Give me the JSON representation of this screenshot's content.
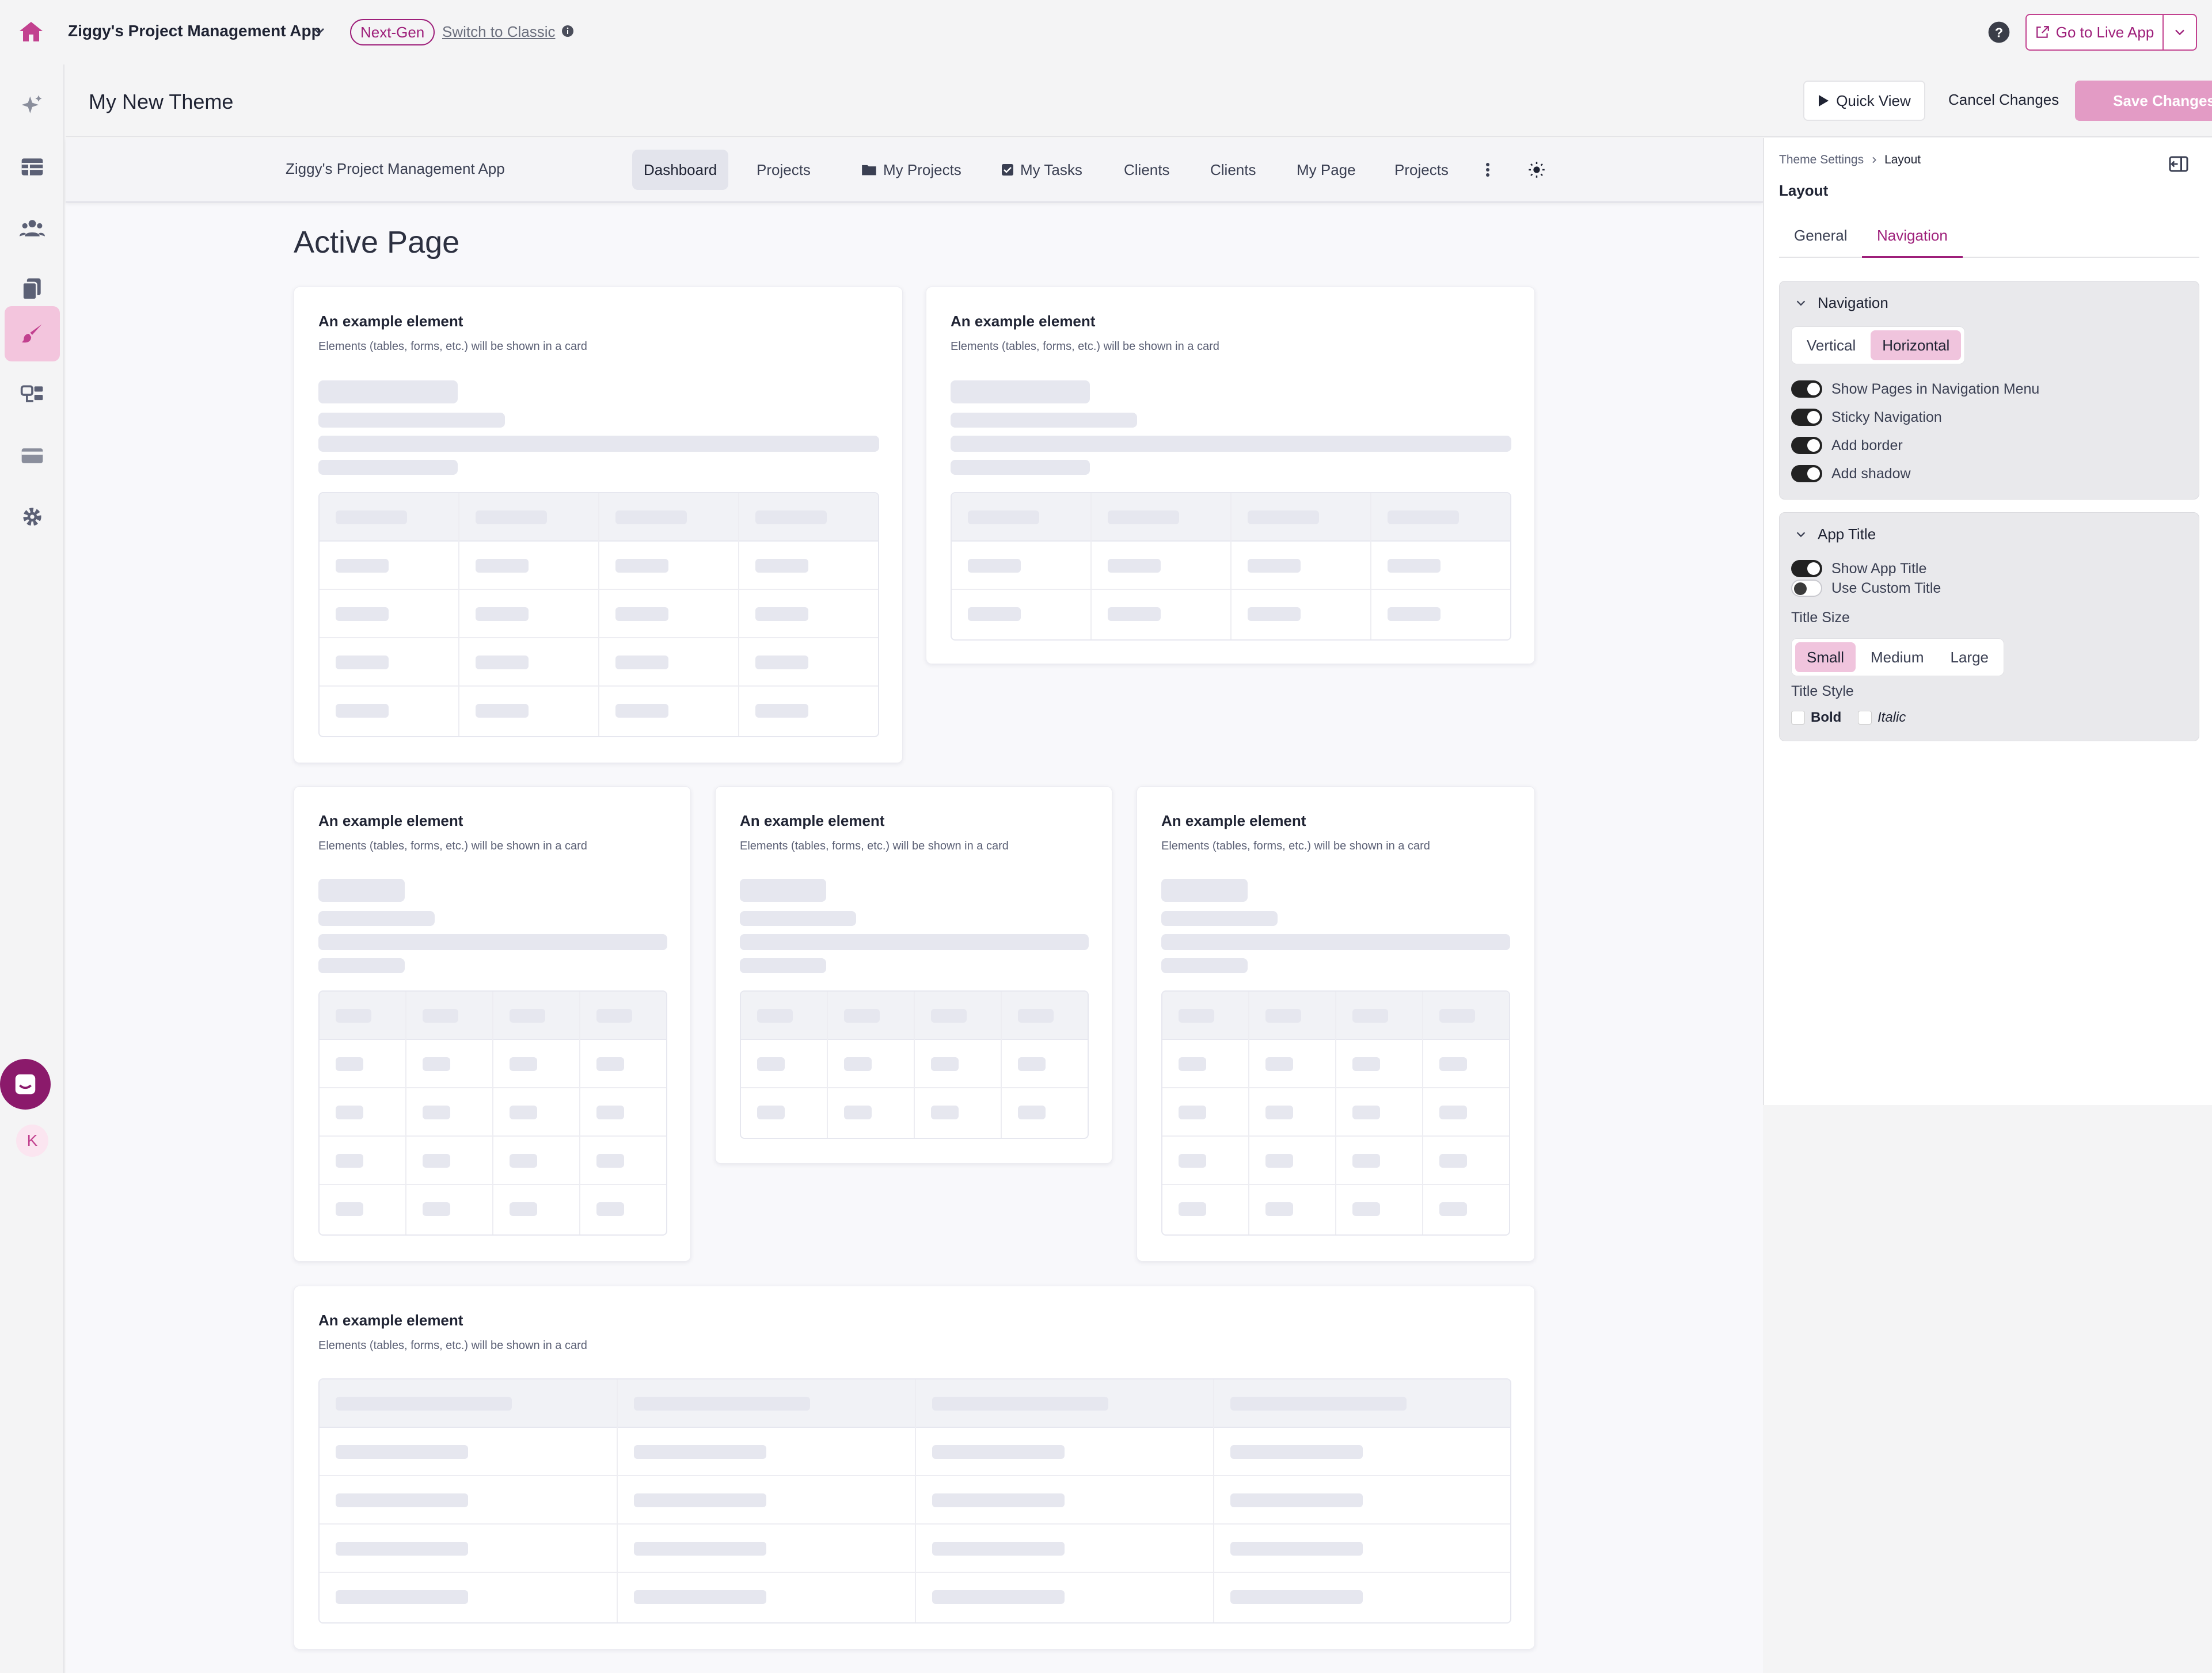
{
  "topbar": {
    "app_name": "Ziggy's Project Management App",
    "badge": "Next-Gen",
    "switch_classic": "Switch to Classic",
    "live_button": "Go to Live App"
  },
  "header": {
    "title": "My New Theme",
    "quick_view": "Quick View",
    "cancel": "Cancel Changes",
    "save": "Save Changes"
  },
  "rail": {
    "avatar_initial": "K"
  },
  "preview": {
    "app_title": "Ziggy's Project Management App",
    "nav_items": [
      "Dashboard",
      "Projects",
      "My Projects",
      "My Tasks",
      "Clients",
      "Clients",
      "My Page",
      "Projects"
    ],
    "page_title": "Active Page",
    "card_title": "An example element",
    "card_subtitle": "Elements (tables, forms, etc.) will be shown in a card"
  },
  "settings": {
    "breadcrumb_root": "Theme Settings",
    "breadcrumb_current": "Layout",
    "title": "Layout",
    "tabs": [
      "General",
      "Navigation"
    ],
    "navigation": {
      "heading": "Navigation",
      "orientation_options": [
        "Vertical",
        "Horizontal"
      ],
      "toggles": [
        "Show Pages in Navigation Menu",
        "Sticky Navigation",
        "Add border",
        "Add shadow"
      ]
    },
    "app_title": {
      "heading": "App Title",
      "show_title": "Show App Title",
      "custom_title": "Use Custom Title",
      "size_label": "Title Size",
      "sizes": [
        "Small",
        "Medium",
        "Large"
      ],
      "style_label": "Title Style",
      "bold": "Bold",
      "italic": "Italic"
    }
  },
  "colors": {
    "accent": "#9e1f7a",
    "save_bg": "#e39bc5",
    "active_rail": "#f3c5dd"
  }
}
